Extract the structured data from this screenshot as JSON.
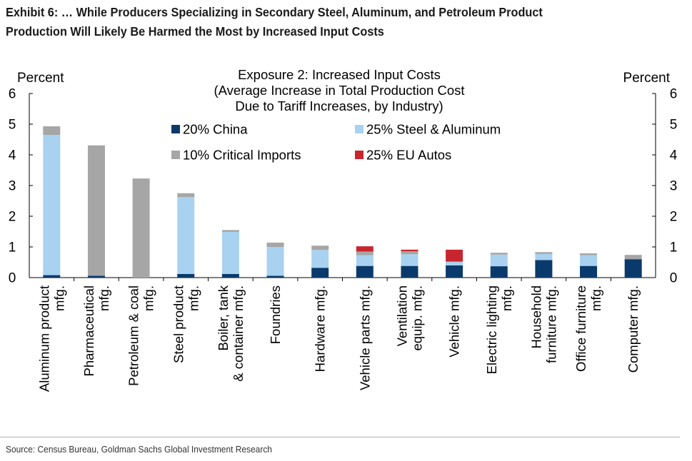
{
  "exhibit": {
    "title_line1": "Exhibit 6: … While Producers Specializing in Secondary Steel, Aluminum, and Petroleum Product",
    "title_line2": "Production Will Likely Be Harmed the Most by Increased Input Costs",
    "source": "Source: Census Bureau, Goldman Sachs Global Investment Research"
  },
  "chart_data": {
    "type": "bar",
    "stacked": true,
    "title_lines": [
      "Exposure 2: Increased Input Costs",
      "(Average Increase in Total Production Cost",
      "Due to Tariff Increases, by Industry)"
    ],
    "ylabel_left": "Percent",
    "ylabel_right": "Percent",
    "ylim": [
      0,
      6
    ],
    "yticks": [
      0,
      1,
      2,
      3,
      4,
      5,
      6
    ],
    "ytick_labels": [
      "0",
      "1",
      "2",
      "3",
      "4",
      "5",
      "6"
    ],
    "grid": false,
    "legend_position": "top-center",
    "categories": [
      "Aluminum product mfg.",
      "Pharmaceutical mfg.",
      "Petroleum & coal mfg.",
      "Steel product mfg.",
      "Boiler, tank & container mfg.",
      "Foundries",
      "Hardware mfg.",
      "Vehicle parts mfg.",
      "Ventilation equip. mfg.",
      "Vehicle mfg.",
      "Electric lighting mfg.",
      "Household furniture mfg.",
      "Office furniture mfg.",
      "Computer mfg."
    ],
    "category_label_lines": [
      [
        "Aluminum product",
        "mfg."
      ],
      [
        "Pharmaceutical",
        "mfg."
      ],
      [
        "Petroleum & coal",
        "mfg."
      ],
      [
        "Steel product",
        "mfg."
      ],
      [
        "Boiler, tank",
        "& container mfg."
      ],
      [
        "Foundries"
      ],
      [
        "Hardware mfg."
      ],
      [
        "Vehicle parts mfg."
      ],
      [
        "Ventilation",
        "equip. mfg."
      ],
      [
        "Vehicle mfg."
      ],
      [
        "Electric lighting",
        "mfg."
      ],
      [
        "Household",
        "furniture mfg."
      ],
      [
        "Office furniture",
        "mfg."
      ],
      [
        "Computer mfg."
      ]
    ],
    "series": [
      {
        "name": "20% China",
        "color": "#0a3a6b",
        "values": [
          0.08,
          0.06,
          0.0,
          0.12,
          0.12,
          0.06,
          0.32,
          0.38,
          0.38,
          0.4,
          0.37,
          0.57,
          0.38,
          0.6
        ]
      },
      {
        "name": "25% Steel & Aluminum",
        "color": "#a9d2f0",
        "values": [
          4.57,
          0.0,
          0.0,
          2.5,
          1.37,
          0.94,
          0.58,
          0.35,
          0.38,
          0.12,
          0.38,
          0.2,
          0.35,
          0.0
        ]
      },
      {
        "name": "10% Critical Imports",
        "color": "#a6a6a6",
        "values": [
          0.28,
          4.25,
          3.23,
          0.13,
          0.06,
          0.14,
          0.14,
          0.12,
          0.1,
          0.0,
          0.06,
          0.06,
          0.06,
          0.14
        ]
      },
      {
        "name": "25% EU Autos",
        "color": "#c8262f",
        "values": [
          0.0,
          0.0,
          0.0,
          0.0,
          0.0,
          0.0,
          0.0,
          0.17,
          0.05,
          0.39,
          0.0,
          0.0,
          0.0,
          0.0
        ]
      }
    ],
    "legend_order": [
      "20% China",
      "25% Steel & Aluminum",
      "10% Critical Imports",
      "25% EU Autos"
    ]
  }
}
